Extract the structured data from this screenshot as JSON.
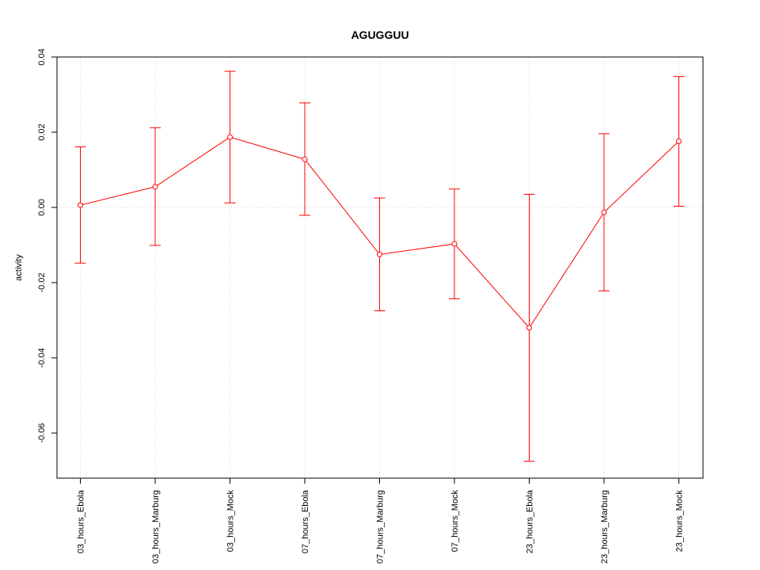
{
  "chart_data": {
    "type": "line",
    "title": "AGUGGUU",
    "xlabel": "",
    "ylabel": "activity",
    "categories": [
      "03_hours_Ebola",
      "03_hours_Marburg",
      "03_hours_Mock",
      "07_hours_Ebola",
      "07_hours_Marburg",
      "07_hours_Mock",
      "23_hours_Ebola",
      "23_hours_Marburg",
      "23_hours_Mock"
    ],
    "values": [
      0.0006,
      0.0055,
      0.0187,
      0.0128,
      -0.0125,
      -0.0097,
      -0.032,
      -0.0013,
      0.0176
    ],
    "err_low": [
      -0.0148,
      -0.0101,
      0.0012,
      -0.0021,
      -0.0275,
      -0.0243,
      -0.0675,
      -0.0222,
      0.0003
    ],
    "err_high": [
      0.0161,
      0.0212,
      0.0362,
      0.0278,
      0.0025,
      0.0049,
      0.0035,
      0.0196,
      0.0348
    ],
    "yticks": [
      0.04,
      0.02,
      0.0,
      -0.02,
      -0.04,
      -0.06
    ],
    "ytick_labels": [
      "0.04",
      "0.02",
      "0.00",
      "-0.02",
      "-0.04",
      "-0.06"
    ],
    "ylim": [
      -0.072,
      0.04
    ],
    "grid": true,
    "color": "#ff0000",
    "grid_color": "#d3d3d3"
  }
}
